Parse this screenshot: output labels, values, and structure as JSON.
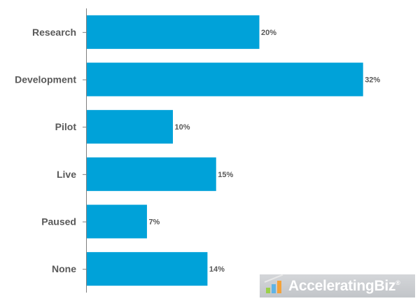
{
  "colors": {
    "bar": "#00a2d9",
    "axis": "#7f7f7f",
    "label": "#595959"
  },
  "chart_data": {
    "type": "bar",
    "orientation": "horizontal",
    "categories": [
      "Research",
      "Development",
      "Pilot",
      "Live",
      "Paused",
      "None"
    ],
    "values": [
      20,
      32,
      10,
      15,
      7,
      14
    ],
    "value_labels": [
      "20%",
      "32%",
      "10%",
      "15%",
      "7%",
      "14%"
    ],
    "unit": "%",
    "xlim": [
      0,
      34
    ],
    "grid": false,
    "legend": "none"
  },
  "watermark": {
    "brand": "AcceleratingBiz",
    "registered_mark": "®"
  }
}
